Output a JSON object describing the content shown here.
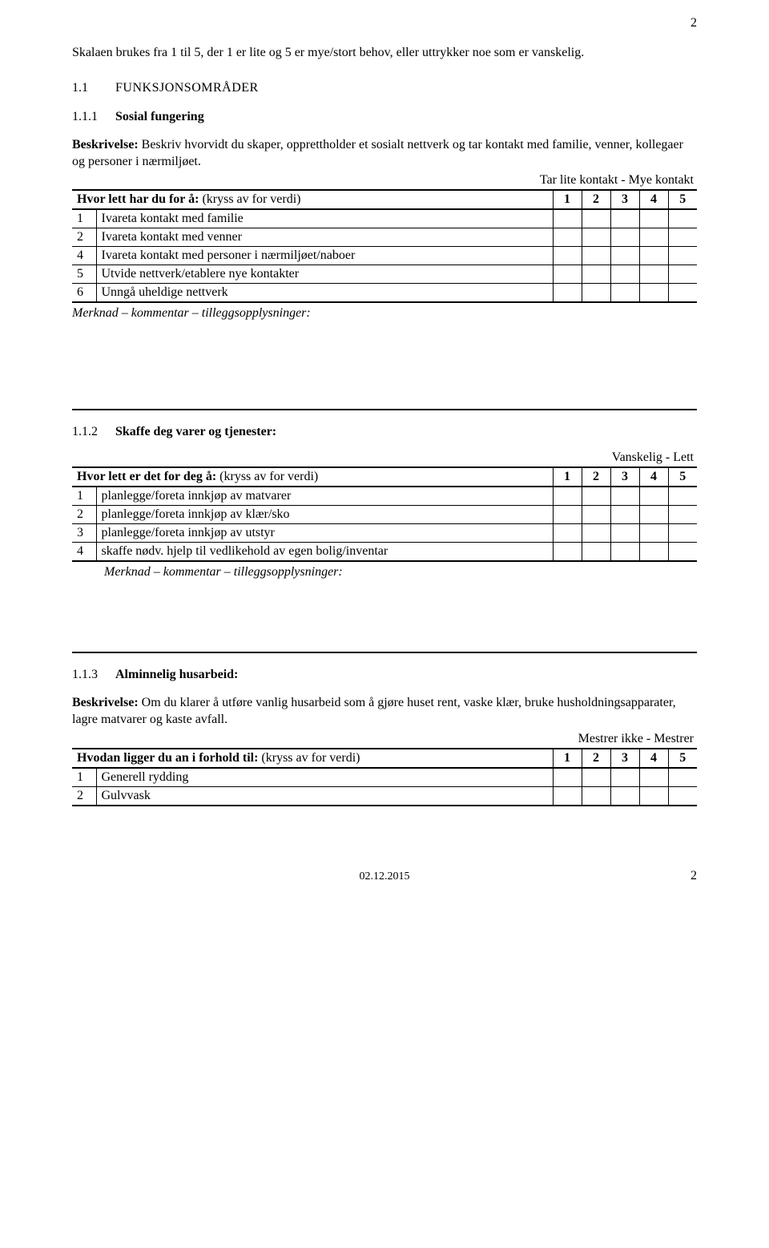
{
  "page_number_top": "2",
  "intro_text": "Skalaen brukes fra 1 til 5, der 1 er lite og 5 er mye/stort behov, eller uttrykker noe som er vanskelig.",
  "section": {
    "num": "1.1",
    "label": "FUNKSJONSOMRÅDER"
  },
  "sub1": {
    "num": "1.1.1",
    "label": "Sosial fungering",
    "desc_prefix": "Beskrivelse:",
    "desc_text": " Beskriv hvorvidt du skaper, opprettholder et sosialt nettverk og tar kontakt med familie, venner, kollegaer og personer i nærmiljøet.",
    "scale_label": "Tar lite kontakt  -   Mye kontakt",
    "question": "Hvor lett har du for å:",
    "question_suffix": " (kryss av for verdi)",
    "cols": [
      "1",
      "2",
      "3",
      "4",
      "5"
    ],
    "rows": [
      {
        "n": "1",
        "t": "Ivareta kontakt med familie"
      },
      {
        "n": "2",
        "t": "Ivareta kontakt med venner"
      },
      {
        "n": "4",
        "t": "Ivareta kontakt med personer i nærmiljøet/naboer"
      },
      {
        "n": "5",
        "t": "Utvide nettverk/etablere nye kontakter"
      },
      {
        "n": "6",
        "t": "Unngå uheldige nettverk"
      }
    ],
    "merknad": "Merknad – kommentar – tilleggsopplysninger:"
  },
  "sub2": {
    "num": "1.1.2",
    "label": "Skaffe deg varer og tjenester:",
    "scale_label": "Vanskelig     -      Lett",
    "question": "Hvor lett er det for deg å:",
    "question_suffix": " (kryss av for verdi)",
    "cols": [
      "1",
      "2",
      "3",
      "4",
      "5"
    ],
    "rows": [
      {
        "n": "1",
        "t": "planlegge/foreta innkjøp av matvarer"
      },
      {
        "n": "2",
        "t": "planlegge/foreta innkjøp av klær/sko"
      },
      {
        "n": "3",
        "t": "planlegge/foreta innkjøp av utstyr"
      },
      {
        "n": "4",
        "t": "skaffe nødv. hjelp til vedlikehold av egen bolig/inventar"
      }
    ],
    "merknad": "Merknad – kommentar – tilleggsopplysninger:"
  },
  "sub3": {
    "num": "1.1.3",
    "label": "Alminnelig husarbeid:",
    "desc_prefix": "Beskrivelse:",
    "desc_text": " Om du klarer å utføre vanlig husarbeid som å gjøre huset rent, vaske klær, bruke husholdningsapparater, lagre matvarer og kaste avfall.",
    "scale_label": "Mestrer ikke     -    Mestrer",
    "question": "Hvodan ligger du an i forhold til:",
    "question_suffix": "  (kryss av for verdi)",
    "cols": [
      "1",
      "2",
      "3",
      "4",
      "5"
    ],
    "rows": [
      {
        "n": "1",
        "t": "Generell rydding"
      },
      {
        "n": "2",
        "t": "Gulvvask"
      }
    ]
  },
  "footer": {
    "date": "02.12.2015",
    "page": "2"
  }
}
